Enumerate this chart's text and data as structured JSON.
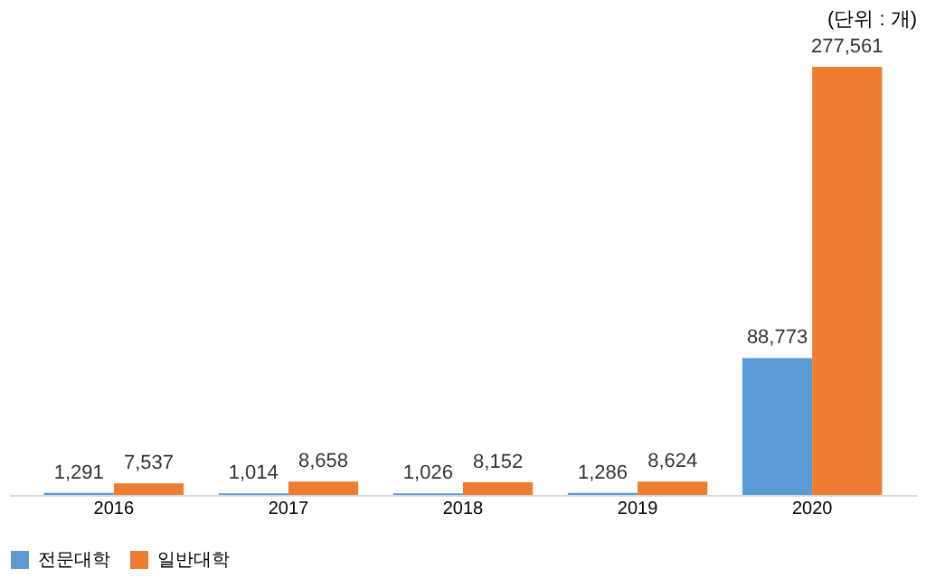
{
  "chart_data": {
    "type": "bar",
    "categories": [
      "2016",
      "2017",
      "2018",
      "2019",
      "2020"
    ],
    "series": [
      {
        "name": "전문대학",
        "color": "#5b9bd5",
        "values": [
          1291,
          1014,
          1026,
          1286,
          88773
        ],
        "value_labels": [
          "1,291",
          "1,014",
          "1,026",
          "1,286",
          "88,773"
        ]
      },
      {
        "name": "일반대학",
        "color": "#ed7d31",
        "values": [
          7537,
          8658,
          8152,
          8624,
          277561
        ],
        "value_labels": [
          "7,537",
          "8,658",
          "8,152",
          "8,624",
          "277,561"
        ]
      }
    ],
    "legend": "bottom",
    "grid": false,
    "annotations": [
      "(단위 : 개)"
    ]
  }
}
